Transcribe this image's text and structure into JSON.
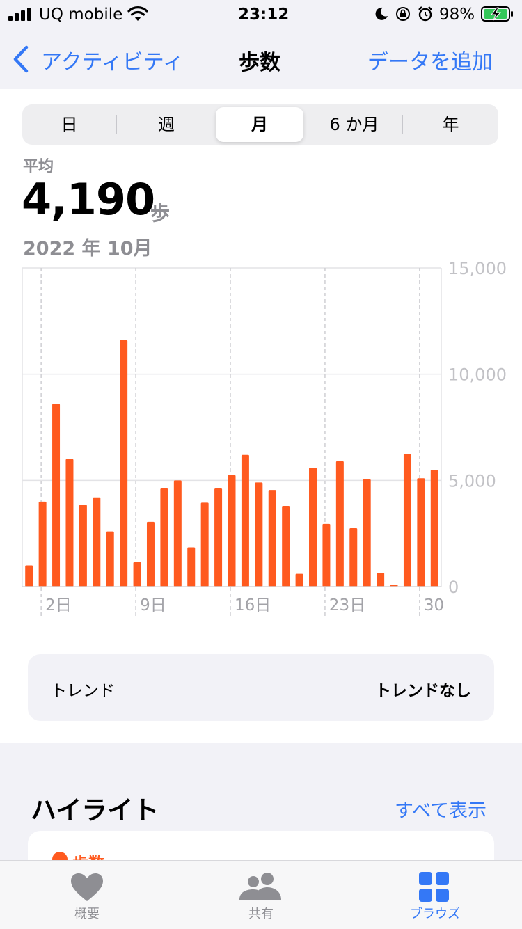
{
  "status_bar": {
    "carrier": "UQ mobile",
    "time": "23:12",
    "battery_percent": "98%",
    "icons": [
      "cellular-signal-icon",
      "wifi-icon",
      "moon-icon",
      "orientation-lock-icon",
      "alarm-icon",
      "battery-charging-icon"
    ]
  },
  "nav": {
    "back_label": "アクティビティ",
    "title": "歩数",
    "action_label": "データを追加"
  },
  "segments": {
    "items": [
      "日",
      "週",
      "月",
      "6 か月",
      "年"
    ],
    "selected": "月"
  },
  "summary": {
    "label": "平均",
    "value": "4,190",
    "unit": "歩",
    "period": "2022 年 10月"
  },
  "chart_data": {
    "type": "bar",
    "x": [
      1,
      2,
      3,
      4,
      5,
      6,
      7,
      8,
      9,
      10,
      11,
      12,
      13,
      14,
      15,
      16,
      17,
      18,
      19,
      20,
      21,
      22,
      23,
      24,
      25,
      26,
      27,
      28,
      29,
      30,
      31
    ],
    "values": [
      1000,
      4000,
      8600,
      6000,
      3850,
      4200,
      2600,
      11600,
      1150,
      3050,
      4650,
      5000,
      1850,
      3950,
      4650,
      5250,
      6200,
      4900,
      4550,
      3800,
      600,
      5600,
      2950,
      5900,
      2750,
      5050,
      650,
      100,
      6250,
      5100,
      5500
    ],
    "x_tick_labels": [
      "2日",
      "9日",
      "16日",
      "23日",
      "30"
    ],
    "y_tick_labels": [
      "15,000",
      "10,000",
      "5,000",
      "0"
    ],
    "ylim": [
      0,
      15000
    ],
    "bar_color": "#ff5a1f",
    "grid": true
  },
  "trend": {
    "label": "トレンド",
    "value": "トレンドなし"
  },
  "highlights": {
    "title": "ハイライト",
    "show_all": "すべて表示",
    "first_item_label": "歩数"
  },
  "tab_bar": {
    "items": [
      {
        "label": "概要",
        "icon": "heart-icon"
      },
      {
        "label": "共有",
        "icon": "people-icon"
      },
      {
        "label": "ブラウズ",
        "icon": "grid-icon"
      }
    ],
    "active": "ブラウズ",
    "active_color": "#3478f6",
    "inactive_color": "#8e8e93"
  }
}
